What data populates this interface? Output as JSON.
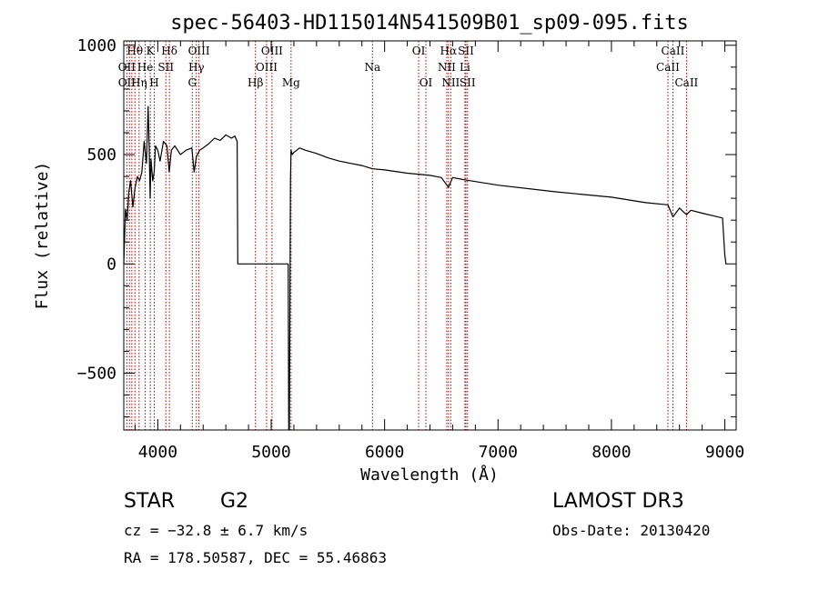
{
  "chart_data": {
    "type": "line",
    "title": "spec-56403-HD115014N541509B01_sp09-095.fits",
    "xlabel": "Wavelength (Å)",
    "ylabel": "Flux (relative)",
    "xlim": [
      3700,
      9100
    ],
    "ylim": [
      -760,
      1020
    ],
    "xticks": [
      4000,
      5000,
      6000,
      7000,
      8000,
      9000
    ],
    "yticks": [
      -500,
      0,
      500,
      1000
    ],
    "xtick_labels": [
      "4000",
      "5000",
      "6000",
      "7000",
      "8000",
      "9000"
    ],
    "ytick_labels": [
      "−500",
      "0",
      "500",
      "1000"
    ],
    "grid": false,
    "series": [
      {
        "name": "spectrum",
        "x": [
          3700,
          3715,
          3730,
          3745,
          3760,
          3780,
          3800,
          3820,
          3840,
          3860,
          3880,
          3900,
          3915,
          3925,
          3933,
          3940,
          3955,
          3968,
          3980,
          4000,
          4020,
          4050,
          4080,
          4101,
          4120,
          4150,
          4200,
          4250,
          4300,
          4320,
          4340,
          4370,
          4400,
          4450,
          4500,
          4550,
          4600,
          4650,
          4680,
          4700,
          4705,
          5100,
          5150,
          5155,
          5160,
          5170,
          5175,
          5185,
          5200,
          5250,
          5300,
          5400,
          5500,
          5600,
          5700,
          5800,
          5893,
          6000,
          6200,
          6400,
          6500,
          6563,
          6600,
          6700,
          7000,
          7500,
          8000,
          8300,
          8498,
          8542,
          8600,
          8662,
          8700,
          8800,
          8900,
          8980,
          9000,
          9010
        ],
        "y": [
          0,
          250,
          200,
          330,
          380,
          260,
          350,
          400,
          380,
          420,
          560,
          460,
          720,
          520,
          300,
          480,
          380,
          420,
          540,
          520,
          470,
          560,
          540,
          420,
          520,
          540,
          500,
          520,
          530,
          420,
          490,
          520,
          530,
          550,
          575,
          565,
          590,
          575,
          585,
          560,
          0,
          0,
          0,
          -760,
          -760,
          380,
          520,
          500,
          510,
          530,
          520,
          505,
          485,
          470,
          460,
          450,
          435,
          430,
          415,
          405,
          395,
          350,
          395,
          385,
          360,
          330,
          305,
          280,
          270,
          215,
          255,
          225,
          245,
          232,
          220,
          210,
          40,
          0
        ]
      }
    ],
    "line_labels": [
      {
        "name": "Hθ",
        "wave": 3798,
        "row": 1
      },
      {
        "name": "K",
        "wave": 3934,
        "row": 1
      },
      {
        "name": "Hδ",
        "wave": 4102,
        "row": 1
      },
      {
        "name": "OIII",
        "wave": 4363,
        "row": 1
      },
      {
        "name": "OIII",
        "wave": 5007,
        "row": 1
      },
      {
        "name": "OI",
        "wave": 6300,
        "row": 1
      },
      {
        "name": "Hα",
        "wave": 6563,
        "row": 1
      },
      {
        "name": "SII",
        "wave": 6717,
        "row": 1
      },
      {
        "name": "CaII",
        "wave": 8542,
        "row": 1
      },
      {
        "name": "OII",
        "wave": 3727,
        "row": 2
      },
      {
        "name": "He",
        "wave": 3889,
        "row": 2
      },
      {
        "name": "SII",
        "wave": 4071,
        "row": 2
      },
      {
        "name": "Hγ",
        "wave": 4340,
        "row": 2
      },
      {
        "name": "OIII",
        "wave": 4959,
        "row": 2
      },
      {
        "name": "Na",
        "wave": 5893,
        "row": 2
      },
      {
        "name": "NII",
        "wave": 6548,
        "row": 2
      },
      {
        "name": "Li",
        "wave": 6708,
        "row": 2
      },
      {
        "name": "CaII",
        "wave": 8498,
        "row": 2
      },
      {
        "name": "OII",
        "wave": 3727,
        "row": 3
      },
      {
        "name": "Hη",
        "wave": 3835,
        "row": 3
      },
      {
        "name": "H",
        "wave": 3969,
        "row": 3
      },
      {
        "name": "G",
        "wave": 4304,
        "row": 3
      },
      {
        "name": "Hβ",
        "wave": 4861,
        "row": 3
      },
      {
        "name": "Mg",
        "wave": 5175,
        "row": 3
      },
      {
        "name": "OI",
        "wave": 6364,
        "row": 3
      },
      {
        "name": "NII",
        "wave": 6583,
        "row": 3
      },
      {
        "name": "SII",
        "wave": 6731,
        "row": 3
      },
      {
        "name": "CaII",
        "wave": 8662,
        "row": 3
      }
    ],
    "line_markers": [
      3727,
      3750,
      3771,
      3798,
      3835,
      3889,
      3934,
      3969,
      4071,
      4102,
      4304,
      4340,
      4363,
      4861,
      4959,
      5007,
      5175,
      5893,
      6300,
      6364,
      6548,
      6563,
      6583,
      6708,
      6717,
      6731,
      8498,
      8542,
      8662
    ],
    "marker_color": "#b00000"
  },
  "info": {
    "class": "STAR",
    "subclass": "G2",
    "survey": "LAMOST DR3",
    "cz": "cz = −32.8 ± 6.7 km/s",
    "obs_date": "Obs-Date: 20130420",
    "coords": "RA = 178.50587, DEC =  55.46863"
  }
}
